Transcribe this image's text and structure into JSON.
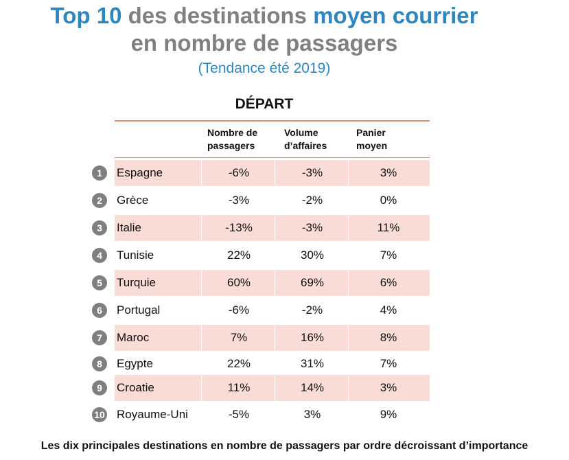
{
  "header": {
    "title_line1_accent": "Top 10",
    "title_line1_mid": " des destinations ",
    "title_line1_accent2": "moyen courrier",
    "title_line2": "en nombre de passagers",
    "subtitle": "(Tendance été 2019)",
    "section": "DÉPART"
  },
  "caption": "Les dix principales destinations en nombre de passagers par ordre décroissant d’importance",
  "colors": {
    "accent": "#2E86C1",
    "title_grey": "#808080",
    "row_shade": "#F9DCD6",
    "rule": "#E08A6E",
    "badge": "#7F7F7F"
  },
  "chart_data": {
    "type": "table",
    "columns": [
      {
        "line1": "Nombre de",
        "line2": "passagers"
      },
      {
        "line1": "Volume",
        "line2": "d’affaires"
      },
      {
        "line1": "Panier",
        "line2": "moyen"
      }
    ],
    "rows": [
      {
        "rank": "1",
        "name": "Espagne",
        "values": [
          "-6%",
          "-3%",
          "3%"
        ],
        "shaded": true
      },
      {
        "rank": "2",
        "name": "Grèce",
        "values": [
          "-3%",
          "-2%",
          "0%"
        ],
        "shaded": false
      },
      {
        "rank": "3",
        "name": "Italie",
        "values": [
          "-13%",
          "-3%",
          "11%"
        ],
        "shaded": true
      },
      {
        "rank": "4",
        "name": "Tunisie",
        "values": [
          "22%",
          "30%",
          "7%"
        ],
        "shaded": false
      },
      {
        "rank": "5",
        "name": "Turquie",
        "values": [
          "60%",
          "69%",
          "6%"
        ],
        "shaded": true
      },
      {
        "rank": "6",
        "name": "Portugal",
        "values": [
          "-6%",
          "-2%",
          "4%"
        ],
        "shaded": false
      },
      {
        "rank": "7",
        "name": "Maroc",
        "values": [
          "7%",
          "16%",
          "8%"
        ],
        "shaded": true
      },
      {
        "rank": "8",
        "name": "Egypte",
        "values": [
          "22%",
          "31%",
          "7%"
        ],
        "shaded": false
      },
      {
        "rank": "9",
        "name": "Croatie",
        "values": [
          "11%",
          "14%",
          "3%"
        ],
        "shaded": true
      },
      {
        "rank": "10",
        "name": "Royaume-Uni",
        "values": [
          "-5%",
          "3%",
          "9%"
        ],
        "shaded": false
      }
    ]
  }
}
